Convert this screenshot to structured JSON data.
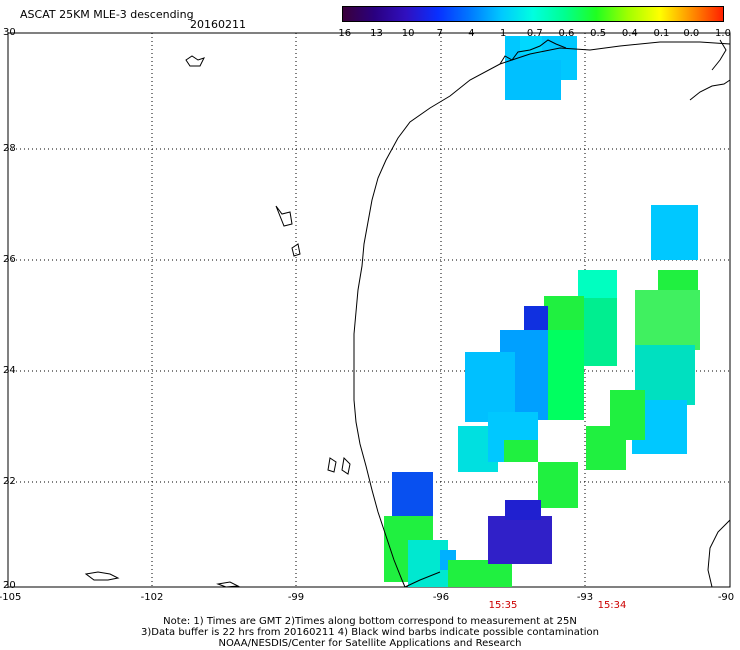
{
  "header": {
    "title": "ASCAT 25KM MLE-3 descending",
    "date": "20160211"
  },
  "colorbar": {
    "ticks": [
      "-16",
      "-13",
      "-10",
      "-7",
      "-4",
      "-1",
      "-0.7",
      "-0.6",
      "-0.5",
      "-0.4",
      "-0.1",
      "0.0",
      "1.0"
    ],
    "colors": [
      "#3a003a",
      "#2a0080",
      "#3010c0",
      "#0830ff",
      "#0078ff",
      "#00c8ff",
      "#00ffe0",
      "#00ff90",
      "#20ff20",
      "#a0ff00",
      "#ffff00",
      "#ff9000",
      "#ff2000"
    ]
  },
  "map": {
    "lat_labels": [
      "30",
      "28",
      "26",
      "24",
      "22",
      "20"
    ],
    "lon_labels": [
      "-105",
      "-102",
      "-99",
      "-96",
      "-93",
      "-90"
    ],
    "time_labels": [
      "15:35",
      "15:34"
    ]
  },
  "footer": {
    "note_line1": "Note: 1) Times are GMT 2)Times along bottom correspond to measurement at 25N",
    "note_line2": "3)Data buffer is 22 hrs from 20160211 4) Black wind barbs indicate possible contamination",
    "note_line3": "NOAA/NESDIS/Center for Satellite Applications and Research"
  }
}
